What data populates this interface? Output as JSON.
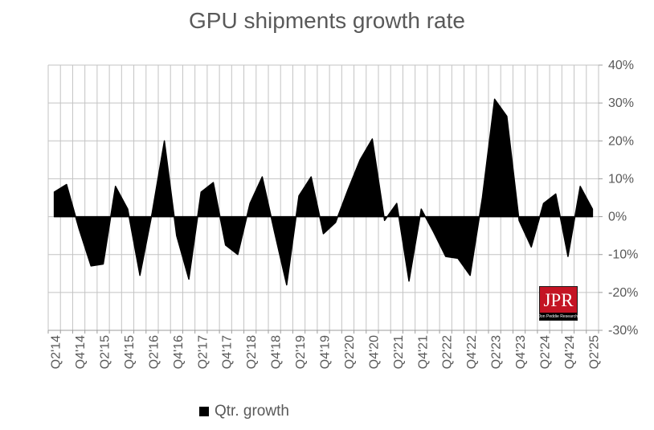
{
  "title": "GPU shipments growth rate",
  "legend": {
    "label": "Qtr. growth"
  },
  "logo": {
    "text": "JPR",
    "subtext": "Jon Peddie Research"
  },
  "colors": {
    "area": "#000000",
    "grid": "#c3c3c3",
    "text": "#595959",
    "logo_red": "#c41424"
  },
  "chart_data": {
    "type": "area",
    "series_name": "Qtr. growth",
    "title": "GPU shipments growth rate",
    "xlabel": "",
    "ylabel": "",
    "ylim": [
      -30,
      40
    ],
    "y_ticks": [
      "40%",
      "30%",
      "20%",
      "10%",
      "0%",
      "-10%",
      "-20%",
      "-30%"
    ],
    "grid": true,
    "legend_position": "bottom",
    "x_labels_every": 2,
    "categories": [
      "Q2'14",
      "Q3'14",
      "Q4'14",
      "Q1'15",
      "Q2'15",
      "Q3'15",
      "Q4'15",
      "Q1'16",
      "Q2'16",
      "Q3'16",
      "Q4'16",
      "Q1'17",
      "Q2'17",
      "Q3'17",
      "Q4'17",
      "Q1'18",
      "Q2'18",
      "Q3'18",
      "Q4'18",
      "Q1'19",
      "Q2'19",
      "Q3'19",
      "Q4'19",
      "Q1'20",
      "Q2'20",
      "Q3'20",
      "Q4'20",
      "Q1'21",
      "Q2'21",
      "Q3'21",
      "Q4'21",
      "Q1'22",
      "Q2'22",
      "Q3'22",
      "Q4'22",
      "Q1'23",
      "Q2'23",
      "Q3'23",
      "Q4'23",
      "Q1'24",
      "Q2'24",
      "Q3'24",
      "Q4'24",
      "Q1'25",
      "Q2'25"
    ],
    "values": [
      6.5,
      8.5,
      -3,
      -13,
      -12.5,
      8,
      2,
      -15.5,
      1,
      20,
      -5,
      -16.5,
      6.5,
      9,
      -7.5,
      -10,
      3.5,
      10.5,
      -4,
      -18,
      5.5,
      10.5,
      -4.5,
      -1.5,
      7,
      15,
      20.5,
      -1,
      3.5,
      -17,
      2,
      -4,
      -10.5,
      -11,
      -15.5,
      5,
      31,
      26.5,
      -1,
      -8,
      3.5,
      6,
      -10.5,
      8,
      2
    ]
  }
}
